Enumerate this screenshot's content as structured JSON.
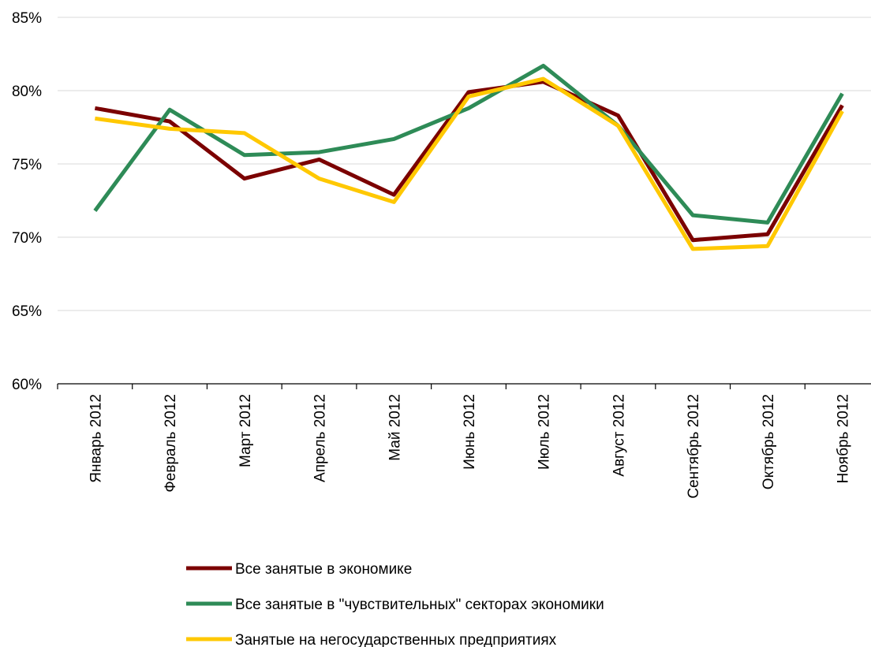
{
  "chart_data": {
    "type": "line",
    "title": "",
    "xlabel": "",
    "ylabel": "",
    "ylim": [
      60,
      85
    ],
    "yticks": [
      "60%",
      "65%",
      "70%",
      "75%",
      "80%",
      "85%"
    ],
    "ytick_values": [
      60,
      65,
      70,
      75,
      80,
      85
    ],
    "grid": true,
    "legend_position": "bottom",
    "categories": [
      "Январь 2012",
      "Февраль 2012",
      "Март 2012",
      "Апрель 2012",
      "Май 2012",
      "Июнь 2012",
      "Июль 2012",
      "Август 2012",
      "Сентябрь 2012",
      "Октябрь 2012",
      "Ноябрь 2012"
    ],
    "series": [
      {
        "name": "Все занятые в экономике",
        "color": "#7b0000",
        "values": [
          78.8,
          77.9,
          74.0,
          75.3,
          72.9,
          79.9,
          80.6,
          78.3,
          69.8,
          70.2,
          79.0
        ]
      },
      {
        "name": "Все занятые в \"чувствительных\" секторах экономики",
        "color": "#2e8b57",
        "values": [
          71.8,
          78.7,
          75.6,
          75.8,
          76.7,
          78.8,
          81.7,
          77.6,
          71.5,
          71.0,
          79.8
        ]
      },
      {
        "name": "Занятые на негосударственных предприятиях",
        "color": "#ffc800",
        "values": [
          78.1,
          77.4,
          77.1,
          74.0,
          72.4,
          79.6,
          80.8,
          77.6,
          69.2,
          69.4,
          78.6
        ]
      }
    ]
  }
}
